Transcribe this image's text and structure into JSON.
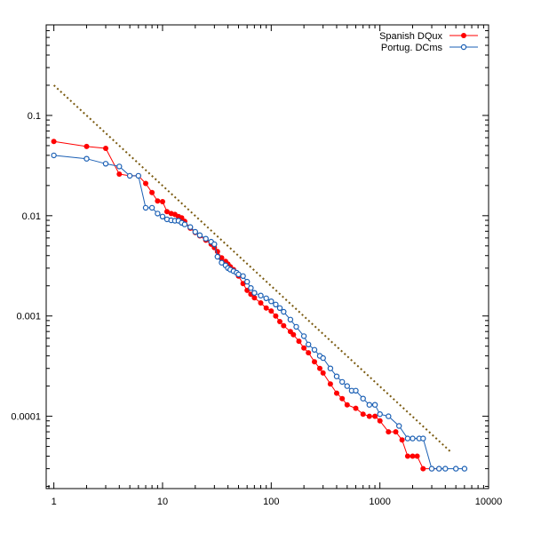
{
  "chart_data": {
    "type": "scatter",
    "title": "",
    "xlabel": "",
    "ylabel": "",
    "x_scale": "log",
    "y_scale": "log",
    "xlim": [
      0.85,
      10000
    ],
    "ylim": [
      1.9e-05,
      0.8
    ],
    "x_ticks": [
      {
        "value": 1,
        "label": "1"
      },
      {
        "value": 10,
        "label": "10"
      },
      {
        "value": 100,
        "label": "100"
      },
      {
        "value": 1000,
        "label": "1000"
      },
      {
        "value": 10000,
        "label": "10000"
      }
    ],
    "y_ticks": [
      {
        "value": 0.0001,
        "label": "0.0001"
      },
      {
        "value": 0.001,
        "label": "0.001"
      },
      {
        "value": 0.01,
        "label": "0.01"
      },
      {
        "value": 0.1,
        "label": "0.1"
      }
    ],
    "grid": false,
    "legend_position": "top-right",
    "series": [
      {
        "name": "Spanish DQux",
        "color": "#ff0000",
        "marker": "filled-circle",
        "x": [
          1,
          2,
          3,
          4,
          5,
          6,
          7,
          8,
          9,
          10,
          11,
          12,
          13,
          14,
          15,
          16,
          18,
          20,
          22,
          25,
          28,
          30,
          32,
          35,
          38,
          40,
          42,
          45,
          48,
          50,
          55,
          60,
          65,
          70,
          80,
          90,
          100,
          110,
          120,
          130,
          150,
          160,
          180,
          200,
          220,
          250,
          280,
          300,
          350,
          400,
          450,
          500,
          600,
          700,
          800,
          900,
          1000,
          1200,
          1400,
          1600,
          1800,
          2000,
          2200,
          2500,
          3000,
          3500
        ],
        "y": [
          0.055,
          0.049,
          0.047,
          0.026,
          0.025,
          0.025,
          0.021,
          0.017,
          0.014,
          0.0138,
          0.011,
          0.0105,
          0.0103,
          0.0098,
          0.0095,
          0.0088,
          0.0075,
          0.0068,
          0.0063,
          0.0057,
          0.0052,
          0.0048,
          0.0044,
          0.0038,
          0.0035,
          0.0033,
          0.0031,
          0.0029,
          0.0027,
          0.0025,
          0.0021,
          0.0018,
          0.00165,
          0.00152,
          0.00135,
          0.0012,
          0.00112,
          0.001,
          0.00088,
          0.0008,
          0.0007,
          0.00065,
          0.00056,
          0.00048,
          0.00043,
          0.00035,
          0.0003,
          0.00027,
          0.00021,
          0.00017,
          0.00015,
          0.00013,
          0.00012,
          0.000105,
          0.0001,
          0.0001,
          9e-05,
          7e-05,
          7e-05,
          5.8e-05,
          4e-05,
          4e-05,
          4e-05,
          3e-05,
          3e-05,
          3e-05
        ]
      },
      {
        "name": "Portug. DCms",
        "color": "#1a5fb4",
        "marker": "open-circle",
        "x": [
          1,
          2,
          3,
          4,
          5,
          6,
          7,
          8,
          9,
          10,
          11,
          12,
          13,
          14,
          15,
          16,
          18,
          20,
          22,
          25,
          28,
          30,
          32,
          35,
          38,
          40,
          42,
          45,
          48,
          50,
          55,
          60,
          65,
          70,
          80,
          90,
          100,
          110,
          120,
          130,
          150,
          170,
          200,
          220,
          250,
          280,
          300,
          350,
          400,
          450,
          500,
          550,
          600,
          700,
          800,
          900,
          1000,
          1200,
          1500,
          1800,
          2000,
          2300,
          2500,
          3000,
          3500,
          4000,
          5000,
          6000
        ],
        "y": [
          0.04,
          0.037,
          0.033,
          0.031,
          0.025,
          0.025,
          0.012,
          0.012,
          0.0105,
          0.0098,
          0.0092,
          0.009,
          0.0089,
          0.0089,
          0.0085,
          0.0082,
          0.0077,
          0.0069,
          0.0064,
          0.0059,
          0.0055,
          0.0052,
          0.0039,
          0.0034,
          0.0032,
          0.003,
          0.0029,
          0.0028,
          0.0027,
          0.0026,
          0.0025,
          0.0022,
          0.0019,
          0.0017,
          0.0016,
          0.0015,
          0.0014,
          0.0013,
          0.0012,
          0.0011,
          0.00092,
          0.00078,
          0.00063,
          0.00052,
          0.00046,
          0.0004,
          0.00038,
          0.0003,
          0.00025,
          0.00022,
          0.0002,
          0.00018,
          0.00018,
          0.00015,
          0.00013,
          0.00013,
          0.000105,
          0.0001,
          8e-05,
          6e-05,
          6e-05,
          6e-05,
          6e-05,
          3e-05,
          3e-05,
          3e-05,
          3e-05,
          3e-05
        ]
      }
    ],
    "reference_line": {
      "style": "dotted",
      "color": "#7a5a10",
      "x": [
        1,
        4500
      ],
      "y": [
        0.2,
        4.4e-05
      ]
    }
  }
}
